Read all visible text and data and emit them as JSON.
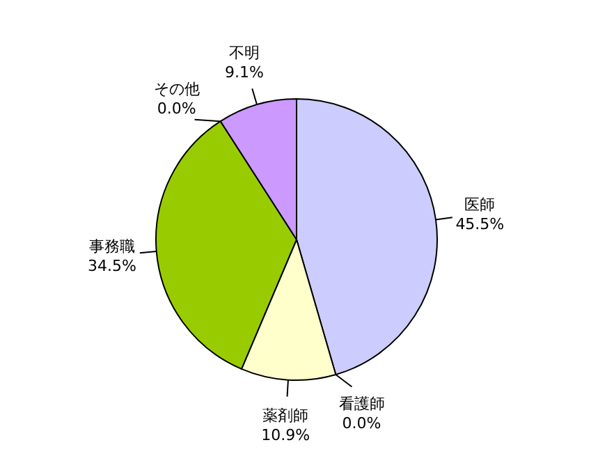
{
  "chart_data": {
    "type": "pie",
    "categories": [
      "医師",
      "看護師",
      "薬剤師",
      "事務職",
      "その他",
      "不明"
    ],
    "values": [
      45.5,
      0.0,
      10.9,
      34.5,
      0.0,
      9.1
    ],
    "colors": [
      "#ccccff",
      null,
      "#ffffcc",
      "#99cc00",
      null,
      "#cc99ff"
    ],
    "value_labels": [
      "45.5%",
      "0.0%",
      "10.9%",
      "34.5%",
      "0.0%",
      "9.1%"
    ]
  }
}
